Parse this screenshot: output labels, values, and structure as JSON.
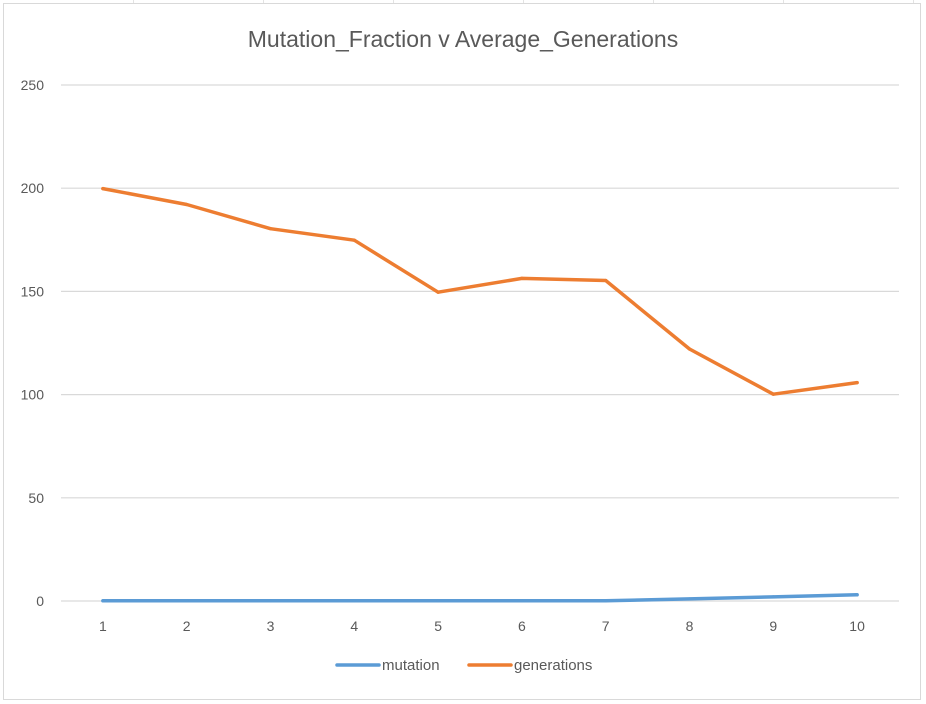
{
  "chart_data": {
    "type": "line",
    "title": "Mutation_Fraction v Average_Generations",
    "xlabel": "",
    "ylabel": "",
    "categories": [
      "1",
      "2",
      "3",
      "4",
      "5",
      "6",
      "7",
      "8",
      "9",
      "10"
    ],
    "ylim": [
      0,
      250
    ],
    "yticks": [
      "0",
      "50",
      "100",
      "150",
      "200",
      "250"
    ],
    "grid": true,
    "legend_position": "bottom",
    "series": [
      {
        "name": "mutation",
        "color": "#5b9bd5",
        "values": [
          0.1,
          0.1,
          0.1,
          0.1,
          0.1,
          0.1,
          0.1,
          1.0,
          2.0,
          3.0
        ]
      },
      {
        "name": "generations",
        "color": "#ed7d31",
        "values": [
          199.8,
          192.1,
          180.4,
          174.8,
          149.6,
          156.3,
          155.3,
          122.1,
          100.2,
          105.8
        ]
      }
    ],
    "gridline_color": "#d9d9d9",
    "text_color": "#595959"
  }
}
